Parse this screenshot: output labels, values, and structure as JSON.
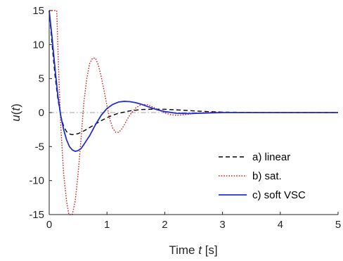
{
  "chart_data": {
    "type": "line",
    "xlabel_prefix": "Time ",
    "xlabel_var": "t",
    "xlabel_suffix": " [s]",
    "ylabel_fn": "u(",
    "ylabel_var": "t",
    "ylabel_close": ")",
    "xlim": [
      0,
      5
    ],
    "ylim": [
      -15,
      15
    ],
    "xticks": [
      0,
      1,
      2,
      3,
      4,
      5
    ],
    "yticks": [
      -15,
      -10,
      -5,
      0,
      5,
      10,
      15
    ],
    "grid": false,
    "legend_position": "lower-right",
    "zero_line": {
      "y": 0,
      "color": "#a0a0a0",
      "style": "dash-dot"
    },
    "series": [
      {
        "name": "a) linear",
        "color": "#000000",
        "style": "dashed",
        "x": [
          0,
          0.05,
          0.1,
          0.15,
          0.2,
          0.25,
          0.3,
          0.35,
          0.4,
          0.5,
          0.6,
          0.7,
          0.8,
          0.9,
          1.0,
          1.1,
          1.2,
          1.4,
          1.6,
          1.8,
          2.0,
          2.2,
          2.4,
          2.6,
          2.8,
          3.0,
          3.5,
          4.0,
          5.0
        ],
        "y": [
          15,
          10,
          5.5,
          2,
          -0.5,
          -2,
          -2.8,
          -3.15,
          -3.25,
          -3.1,
          -2.7,
          -2.2,
          -1.7,
          -1.2,
          -0.75,
          -0.4,
          -0.1,
          0.25,
          0.45,
          0.5,
          0.48,
          0.4,
          0.3,
          0.2,
          0.12,
          0.06,
          0.02,
          0,
          0
        ]
      },
      {
        "name": "b) sat.",
        "color": "#d62020",
        "style": "dotted",
        "x": [
          0,
          0.01,
          0.13,
          0.16,
          0.2,
          0.25,
          0.3,
          0.34,
          0.4,
          0.45,
          0.5,
          0.55,
          0.6,
          0.65,
          0.7,
          0.75,
          0.8,
          0.85,
          0.9,
          0.95,
          1.0,
          1.05,
          1.1,
          1.15,
          1.2,
          1.25,
          1.3,
          1.35,
          1.4,
          1.5,
          1.6,
          1.7,
          1.8,
          1.9,
          2.0,
          2.1,
          2.2,
          2.3,
          2.4,
          2.6,
          2.8,
          3.0,
          3.5,
          4.0,
          5.0
        ],
        "y": [
          15,
          15,
          15,
          7,
          -2,
          -9,
          -13,
          -15,
          -15,
          -13,
          -9,
          -4,
          1.5,
          5,
          7.2,
          8.0,
          8.0,
          7.0,
          5.3,
          3.2,
          1.0,
          -1.0,
          -2.3,
          -2.9,
          -2.9,
          -2.5,
          -1.8,
          -1.0,
          -0.3,
          0.7,
          1.2,
          1.15,
          0.8,
          0.35,
          -0.05,
          -0.3,
          -0.4,
          -0.35,
          -0.25,
          -0.05,
          0.05,
          0.05,
          0,
          0,
          0
        ]
      },
      {
        "name": "c) soft VSC",
        "color": "#1f2fd6",
        "style": "solid",
        "x": [
          0,
          0.05,
          0.1,
          0.15,
          0.2,
          0.25,
          0.3,
          0.35,
          0.4,
          0.45,
          0.5,
          0.55,
          0.6,
          0.7,
          0.8,
          0.9,
          1.0,
          1.1,
          1.2,
          1.3,
          1.4,
          1.5,
          1.6,
          1.7,
          1.8,
          1.9,
          2.0,
          2.2,
          2.4,
          2.6,
          2.8,
          3.0,
          3.5,
          4.0,
          5.0
        ],
        "y": [
          15,
          11,
          6.5,
          2.5,
          -0.5,
          -2.5,
          -4.0,
          -5.0,
          -5.5,
          -5.7,
          -5.6,
          -5.3,
          -4.7,
          -3.4,
          -1.8,
          -0.4,
          0.6,
          1.2,
          1.55,
          1.65,
          1.6,
          1.45,
          1.2,
          0.9,
          0.6,
          0.35,
          0.15,
          -0.1,
          -0.15,
          -0.1,
          -0.05,
          0,
          0,
          0,
          0
        ]
      }
    ]
  }
}
